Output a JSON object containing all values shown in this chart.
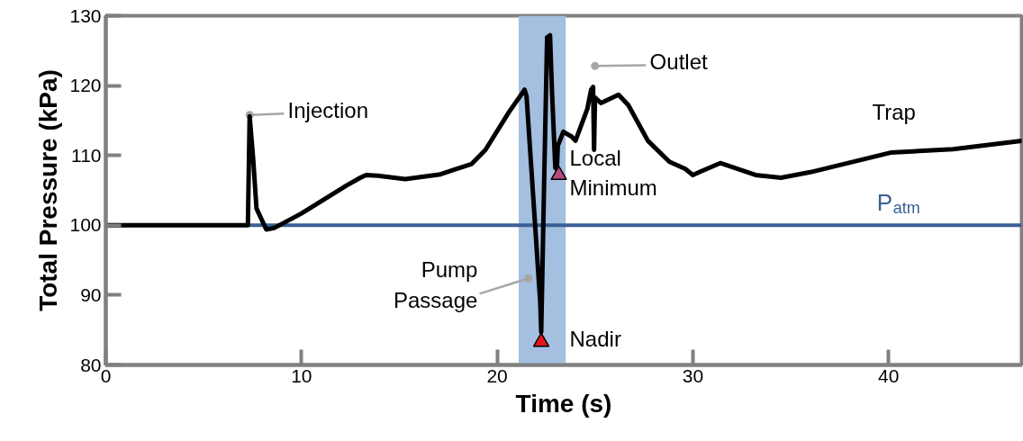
{
  "chart_data": {
    "type": "line",
    "xlabel": "Time (s)",
    "ylabel": "Total Pressure (kPa)",
    "xlim": [
      0,
      46.8
    ],
    "xticks": [
      0,
      10,
      20,
      30,
      40
    ],
    "ylim": [
      80,
      130
    ],
    "yticks": [
      80,
      90,
      100,
      110,
      120,
      130
    ],
    "grid": false,
    "line_style": "solid",
    "series": [
      {
        "color": "#000000",
        "x": [
          0,
          7.26,
          7.35,
          7.53,
          7.7,
          8.2,
          8.6,
          10,
          12.3,
          13,
          13.3,
          13.9,
          15.3,
          17.1,
          18.7,
          19.4,
          20.6,
          21.4,
          21.5,
          22.2,
          22.25,
          22.4,
          22.55,
          22.7,
          22.8,
          22.97,
          23.05,
          23.1,
          23.38,
          23.8,
          24.0,
          24.6,
          24.8,
          24.9,
          24.95,
          25.0,
          25.3,
          26.2,
          26.7,
          27.7,
          28.8,
          29.6,
          30.0,
          30.4,
          31.4,
          33.2,
          34.5,
          36.0,
          40.1,
          43.3,
          46.8
        ],
        "values": [
          100,
          100,
          115.6,
          109.5,
          102.4,
          99.4,
          99.6,
          101.7,
          105.7,
          106.8,
          107.2,
          107.1,
          106.6,
          107.3,
          108.8,
          110.8,
          116.2,
          119.4,
          118.5,
          88.9,
          84.7,
          106.3,
          126.9,
          127.2,
          119.2,
          108.2,
          108.1,
          111.4,
          113.4,
          112.7,
          112.1,
          116.6,
          119.4,
          119.8,
          110.8,
          118.3,
          117.5,
          118.7,
          117.2,
          112.1,
          109.1,
          108.1,
          107.2,
          107.7,
          108.9,
          107.2,
          106.8,
          107.6,
          110.4,
          110.9,
          112.1
        ]
      },
      {
        "type": "scatter",
        "name": "Nadir",
        "color": "#e8141c",
        "marker": "triangle",
        "x": [
          22.25
        ],
        "values": [
          83.3
        ]
      },
      {
        "type": "scatter",
        "name": "Local Minimum",
        "color": "#b5487e",
        "marker": "triangle",
        "x": [
          23.15
        ],
        "values": [
          107.2
        ]
      }
    ],
    "ref_lines": [
      {
        "axis": "y",
        "value": 100,
        "label": "P$_{atm}$",
        "color": "#3a5f95"
      }
    ],
    "bands": [
      {
        "axis": "x",
        "from": 21.1,
        "to": 23.5,
        "color": "#a4bfe0"
      }
    ],
    "annotations": [
      {
        "text": "Injection",
        "x": 7.35,
        "y": 115.8
      },
      {
        "text": "Outlet",
        "x": 25.0,
        "y": 122.8
      },
      {
        "text": "Pump Passage",
        "x": 21.6,
        "y": 92.4
      },
      "Trap"
    ]
  }
}
